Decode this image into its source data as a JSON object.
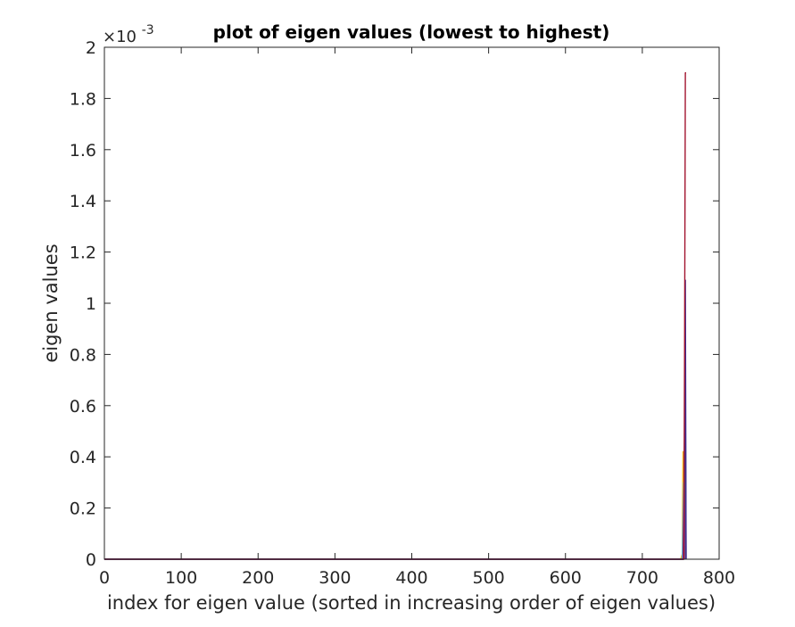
{
  "chart_data": {
    "type": "line",
    "title": "plot of eigen values (lowest to highest)",
    "xlabel": "index for eigen value (sorted in increasing order of eigen values)",
    "ylabel": "eigen values",
    "xlim": [
      0,
      800
    ],
    "ylim": [
      0,
      0.002
    ],
    "x_ticks": [
      0,
      100,
      200,
      300,
      400,
      500,
      600,
      700,
      800
    ],
    "x_tick_labels": [
      "0",
      "100",
      "200",
      "300",
      "400",
      "500",
      "600",
      "700",
      "800"
    ],
    "y_ticks": [
      0,
      0.0002,
      0.0004,
      0.0006,
      0.0008,
      0.001,
      0.0012,
      0.0014,
      0.0016,
      0.0018,
      0.002
    ],
    "y_tick_labels": [
      "0",
      "0.2",
      "0.4",
      "0.6",
      "0.8",
      "1",
      "1.2",
      "1.4",
      "1.6",
      "1.8",
      "2"
    ],
    "y_exponent_label": "×10",
    "y_exponent_power": "-3",
    "grid": false,
    "series": [
      {
        "color": "#0072BD",
        "x": [
          0,
          750,
          753,
          754,
          755
        ],
        "y": [
          0,
          0,
          0,
          1e-05,
          0
        ]
      },
      {
        "color": "#EDB120",
        "x": [
          0,
          750,
          752,
          753,
          754
        ],
        "y": [
          0,
          0,
          2e-05,
          0.00042,
          0
        ]
      },
      {
        "color": "#77AC30",
        "x": [
          0,
          752,
          754,
          755,
          756
        ],
        "y": [
          0,
          0,
          3e-05,
          5e-05,
          0
        ]
      },
      {
        "color": "#4DBEEE",
        "x": [
          0,
          752,
          754,
          755,
          756
        ],
        "y": [
          0,
          0,
          0.0003,
          0.00021,
          0
        ]
      },
      {
        "color": "#7E2F8E",
        "x": [
          0,
          753,
          754,
          755,
          756
        ],
        "y": [
          0,
          0,
          0.0002,
          0.00047,
          0
        ]
      },
      {
        "color": "#5A6B7D",
        "x": [
          0,
          754,
          755,
          756,
          757
        ],
        "y": [
          0,
          0,
          0.0003,
          0.00064,
          0
        ]
      },
      {
        "color": "#3E2A8E",
        "x": [
          0,
          754,
          755,
          756,
          757
        ],
        "y": [
          0,
          0,
          0.0005,
          0.00109,
          0
        ]
      },
      {
        "color": "#A2142F",
        "x": [
          0,
          754,
          755,
          756,
          757
        ],
        "y": [
          0,
          0,
          0.0008,
          0.0019,
          0.0019
        ]
      }
    ]
  }
}
